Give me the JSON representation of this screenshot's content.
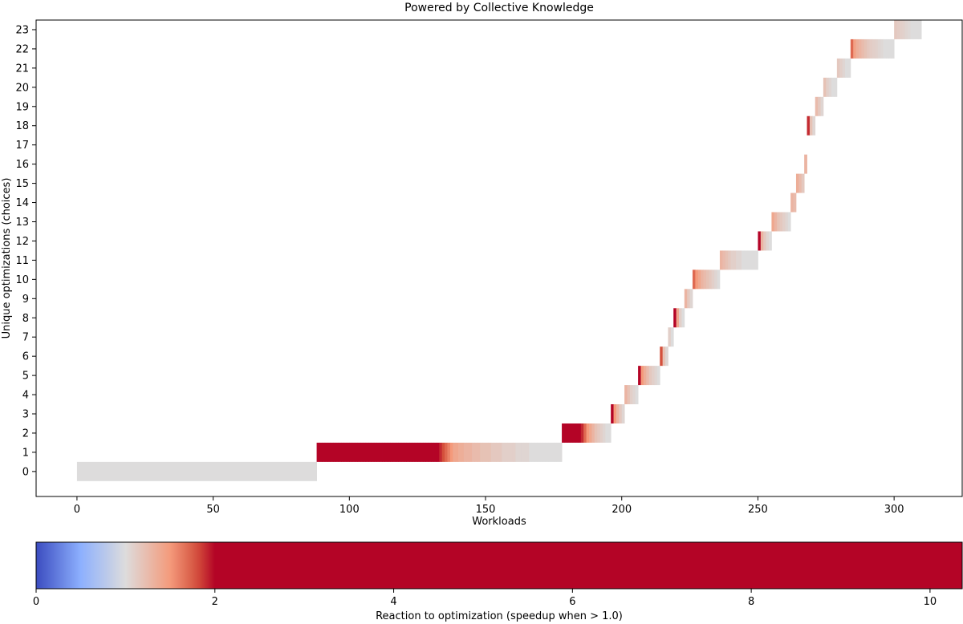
{
  "chart_data": [
    {
      "type": "heatmap",
      "title": "Powered by Collective Knowledge",
      "xlabel": "Workloads",
      "ylabel": "Unique optimizations (choices)",
      "xlim": [
        -15,
        325
      ],
      "ylim": [
        -1.3,
        23.5
      ],
      "xticks": [
        0,
        50,
        100,
        150,
        200,
        250,
        300
      ],
      "yticks": [
        0,
        1,
        2,
        3,
        4,
        5,
        6,
        7,
        8,
        9,
        10,
        11,
        12,
        13,
        14,
        15,
        16,
        17,
        18,
        19,
        20,
        21,
        22,
        23
      ],
      "grid": false,
      "rows": [
        {
          "y": 0,
          "x_start": 0,
          "x_end": 88,
          "values": [
            1.0
          ]
        },
        {
          "y": 1,
          "x_start": 88,
          "x_end": 178,
          "values": [
            3.0,
            3.0,
            3.0,
            3.0,
            3.0,
            3.0,
            3.0,
            3.0,
            3.0,
            3.0,
            3.0,
            3.0,
            3.0,
            3.0,
            3.0,
            3.0,
            3.0,
            3.0,
            3.0,
            3.0,
            3.0,
            3.0,
            3.0,
            3.0,
            3.0,
            3.0,
            3.0,
            3.0,
            3.0,
            3.0,
            3.0,
            3.0,
            3.0,
            3.0,
            3.0,
            3.0,
            3.0,
            3.0,
            3.0,
            3.0,
            3.0,
            3.0,
            3.0,
            3.0,
            3.0,
            1.9,
            1.8,
            1.7,
            1.6,
            1.5,
            1.4,
            1.4,
            1.35,
            1.35,
            1.3,
            1.3,
            1.3,
            1.25,
            1.25,
            1.25,
            1.2,
            1.2,
            1.2,
            1.2,
            1.15,
            1.15,
            1.15,
            1.15,
            1.1,
            1.1,
            1.1,
            1.1,
            1.1,
            1.05,
            1.05,
            1.05,
            1.05,
            1.05,
            1.0,
            1.0,
            1.0,
            1.0,
            1.0,
            1.0,
            1.0,
            1.0,
            1.0,
            1.0,
            1.0,
            1.0
          ]
        },
        {
          "y": 2,
          "x_start": 178,
          "x_end": 196,
          "values": [
            3.0,
            3.0,
            3.0,
            3.0,
            3.0,
            3.0,
            3.0,
            1.9,
            1.7,
            1.5,
            1.4,
            1.3,
            1.2,
            1.15,
            1.1,
            1.05,
            1.0,
            1.0
          ]
        },
        {
          "y": 3,
          "x_start": 196,
          "x_end": 201,
          "values": [
            2.6,
            1.5,
            1.3,
            1.15,
            1.05
          ]
        },
        {
          "y": 4,
          "x_start": 201,
          "x_end": 206,
          "values": [
            1.3,
            1.2,
            1.1,
            1.05,
            1.0
          ]
        },
        {
          "y": 5,
          "x_start": 206,
          "x_end": 214,
          "values": [
            2.6,
            1.5,
            1.35,
            1.25,
            1.15,
            1.1,
            1.05,
            1.0
          ]
        },
        {
          "y": 6,
          "x_start": 214,
          "x_end": 217,
          "values": [
            1.8,
            1.2,
            1.05
          ]
        },
        {
          "y": 7,
          "x_start": 217,
          "x_end": 219,
          "values": [
            1.1,
            1.0
          ]
        },
        {
          "y": 8,
          "x_start": 219,
          "x_end": 223,
          "values": [
            3.0,
            1.4,
            1.1,
            1.0
          ]
        },
        {
          "y": 9,
          "x_start": 223,
          "x_end": 226,
          "values": [
            1.3,
            1.15,
            1.05
          ]
        },
        {
          "y": 10,
          "x_start": 226,
          "x_end": 236,
          "values": [
            1.7,
            1.5,
            1.4,
            1.3,
            1.25,
            1.2,
            1.15,
            1.1,
            1.05,
            1.0
          ]
        },
        {
          "y": 11,
          "x_start": 236,
          "x_end": 250,
          "values": [
            1.3,
            1.25,
            1.2,
            1.15,
            1.1,
            1.1,
            1.05,
            1.05,
            1.0,
            1.0,
            1.0,
            1.0,
            1.0,
            1.0
          ]
        },
        {
          "y": 12,
          "x_start": 250,
          "x_end": 255,
          "values": [
            3.0,
            1.3,
            1.15,
            1.05,
            1.0
          ]
        },
        {
          "y": 13,
          "x_start": 255,
          "x_end": 262,
          "values": [
            1.4,
            1.3,
            1.2,
            1.15,
            1.1,
            1.05,
            1.0
          ]
        },
        {
          "y": 14,
          "x_start": 262,
          "x_end": 264,
          "values": [
            1.3,
            1.25
          ]
        },
        {
          "y": 15,
          "x_start": 264,
          "x_end": 267,
          "values": [
            1.35,
            1.25,
            1.15
          ]
        },
        {
          "y": 16,
          "x_start": 267,
          "x_end": 268,
          "values": [
            1.3
          ]
        },
        {
          "y": 17,
          "x_start": 268,
          "x_end": 268,
          "values": []
        },
        {
          "y": 18,
          "x_start": 268,
          "x_end": 271,
          "values": [
            1.9,
            1.2,
            1.05
          ]
        },
        {
          "y": 19,
          "x_start": 271,
          "x_end": 274,
          "values": [
            1.25,
            1.15,
            1.05
          ]
        },
        {
          "y": 20,
          "x_start": 274,
          "x_end": 279,
          "values": [
            1.2,
            1.1,
            1.05,
            1.0,
            1.0
          ]
        },
        {
          "y": 21,
          "x_start": 279,
          "x_end": 284,
          "values": [
            1.15,
            1.1,
            1.05,
            1.0,
            1.0
          ]
        },
        {
          "y": 22,
          "x_start": 284,
          "x_end": 300,
          "values": [
            1.7,
            1.45,
            1.35,
            1.3,
            1.25,
            1.2,
            1.15,
            1.12,
            1.1,
            1.08,
            1.05,
            1.03,
            1.0,
            1.0,
            1.0,
            1.0
          ]
        },
        {
          "y": 23,
          "x_start": 300,
          "x_end": 310,
          "values": [
            1.15,
            1.12,
            1.1,
            1.08,
            1.05,
            1.03,
            1.0,
            1.0,
            1.0,
            1.0
          ]
        }
      ]
    },
    {
      "type": "colorbar",
      "xlabel": "Reaction to optimization (speedup when > 1.0)",
      "xlim": [
        0,
        10.36
      ],
      "xticks": [
        0,
        2,
        4,
        6,
        8,
        10
      ],
      "colormap": "coolwarm",
      "vmin": 0,
      "vmax": 2,
      "colors": {
        "low": "#3b4cc0",
        "mid": "#dddcdc",
        "high": "#b40426"
      }
    }
  ]
}
